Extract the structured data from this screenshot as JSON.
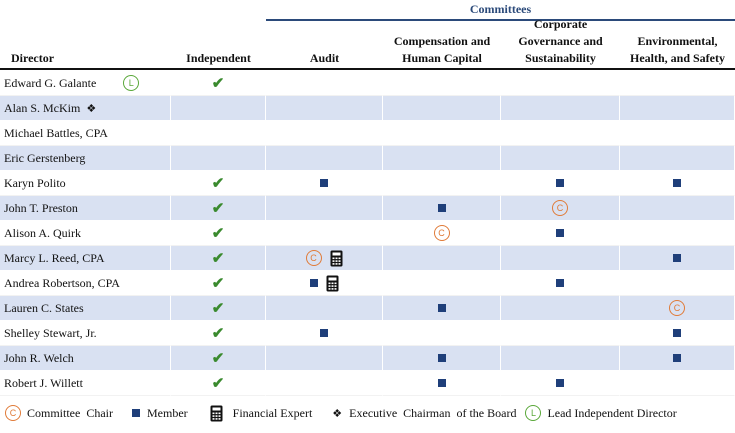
{
  "header": {
    "group_label": "Committees",
    "columns": [
      "Director",
      "Independent",
      "Audit",
      "Compensation and Human Capital",
      "Corporate Governance and Sustainability",
      "Environmental, Health, and Safety"
    ]
  },
  "directors": [
    {
      "name": "Edward G. Galante",
      "independent": true,
      "lead_independent": true,
      "executive_chairman": false,
      "audit": "",
      "audit_expert": false,
      "comp": "",
      "gov": "",
      "ehs": ""
    },
    {
      "name": "Alan S. McKim",
      "independent": false,
      "lead_independent": false,
      "executive_chairman": true,
      "audit": "",
      "audit_expert": false,
      "comp": "",
      "gov": "",
      "ehs": ""
    },
    {
      "name": "Michael Battles, CPA",
      "independent": false,
      "lead_independent": false,
      "executive_chairman": false,
      "audit": "",
      "audit_expert": false,
      "comp": "",
      "gov": "",
      "ehs": ""
    },
    {
      "name": "Eric Gerstenberg",
      "independent": false,
      "lead_independent": false,
      "executive_chairman": false,
      "audit": "",
      "audit_expert": false,
      "comp": "",
      "gov": "",
      "ehs": ""
    },
    {
      "name": "Karyn Polito",
      "independent": true,
      "lead_independent": false,
      "executive_chairman": false,
      "audit": "member",
      "audit_expert": false,
      "comp": "",
      "gov": "member",
      "ehs": "member"
    },
    {
      "name": "John T. Preston",
      "independent": true,
      "lead_independent": false,
      "executive_chairman": false,
      "audit": "",
      "audit_expert": false,
      "comp": "member",
      "gov": "chair",
      "ehs": ""
    },
    {
      "name": "Alison A. Quirk",
      "independent": true,
      "lead_independent": false,
      "executive_chairman": false,
      "audit": "",
      "audit_expert": false,
      "comp": "chair",
      "gov": "member",
      "ehs": ""
    },
    {
      "name": "Marcy L. Reed, CPA",
      "independent": true,
      "lead_independent": false,
      "executive_chairman": false,
      "audit": "chair",
      "audit_expert": true,
      "comp": "",
      "gov": "",
      "ehs": "member"
    },
    {
      "name": "Andrea Robertson, CPA",
      "independent": true,
      "lead_independent": false,
      "executive_chairman": false,
      "audit": "member",
      "audit_expert": true,
      "comp": "",
      "gov": "member",
      "ehs": ""
    },
    {
      "name": "Lauren C. States",
      "independent": true,
      "lead_independent": false,
      "executive_chairman": false,
      "audit": "",
      "audit_expert": false,
      "comp": "member",
      "gov": "",
      "ehs": "chair"
    },
    {
      "name": "Shelley Stewart, Jr.",
      "independent": true,
      "lead_independent": false,
      "executive_chairman": false,
      "audit": "member",
      "audit_expert": false,
      "comp": "",
      "gov": "",
      "ehs": "member"
    },
    {
      "name": "John R. Welch",
      "independent": true,
      "lead_independent": false,
      "executive_chairman": false,
      "audit": "",
      "audit_expert": false,
      "comp": "member",
      "gov": "",
      "ehs": "member"
    },
    {
      "name": "Robert J. Willett",
      "independent": true,
      "lead_independent": false,
      "executive_chairman": false,
      "audit": "",
      "audit_expert": false,
      "comp": "member",
      "gov": "member",
      "ehs": ""
    }
  ],
  "legend": {
    "chair": "Committee  Chair",
    "member": "Member",
    "expert": "Financial Expert",
    "exec": "Executive  Chairman  of the Board",
    "lead": "Lead Independent Director"
  },
  "symbols": {
    "chair_glyph": "C",
    "lead_glyph": "L",
    "check_glyph": "✔",
    "exec_glyph": "❖"
  },
  "colors": {
    "shade": "#d9e1f2",
    "header_blue": "#2b4a7a",
    "member_blue": "#1f3f7a",
    "chair_orange": "#e07b39",
    "check_green": "#3a8a2e",
    "lead_green": "#5aa83a"
  }
}
